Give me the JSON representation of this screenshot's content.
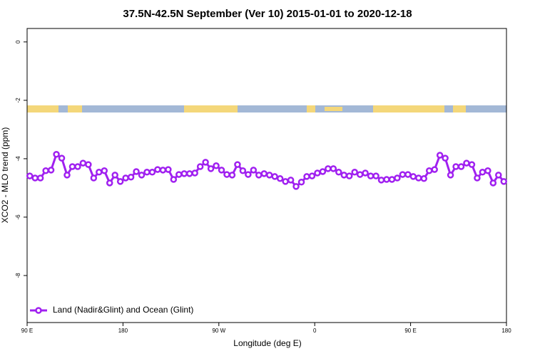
{
  "chart_data": {
    "type": "line",
    "title": "37.5N-42.5N September (Ver 10)   2015-01-01 to 2020-12-18",
    "xlabel": "Longitude (deg E)",
    "ylabel": "XCO2 - MLO trend (ppm)",
    "xlim": [
      90,
      540
    ],
    "ylim": [
      -9.61,
      0.46
    ],
    "xticks": [
      {
        "value": 90,
        "label": "90 E"
      },
      180,
      {
        "value": 270,
        "label": "90 W"
      },
      {
        "value": 360,
        "label": "0"
      },
      {
        "value": 450,
        "label": "90 E"
      },
      {
        "value": 540,
        "label": "180"
      }
    ],
    "yticks": [
      0,
      -2,
      -4,
      -6,
      -8
    ],
    "legend": "bottom-left",
    "x": [
      92.5,
      97.5,
      102.5,
      107.5,
      112.5,
      117.5,
      122.5,
      127.5,
      132.5,
      137.5,
      142.5,
      147.5,
      152.5,
      157.5,
      162.5,
      167.5,
      172.5,
      177.5,
      182.5,
      187.5,
      192.5,
      197.5,
      202.5,
      207.5,
      212.5,
      217.5,
      222.5,
      227.5,
      232.5,
      237.5,
      242.5,
      247.5,
      252.5,
      257.5,
      262.5,
      267.5,
      272.5,
      277.5,
      282.5,
      287.5,
      292.5,
      297.5,
      302.5,
      307.5,
      312.5,
      317.5,
      322.5,
      327.5,
      332.5,
      337.5,
      342.5,
      347.5,
      352.5,
      357.5,
      362.5,
      367.5,
      372.5,
      377.5,
      382.5,
      387.5,
      392.5,
      397.5,
      402.5,
      407.5,
      412.5,
      417.5,
      422.5,
      427.5,
      432.5,
      437.5,
      442.5,
      447.5,
      452.5,
      457.5,
      462.5,
      467.5,
      472.5,
      477.5,
      482.5,
      487.5,
      492.5,
      497.5,
      502.5,
      507.5,
      512.5,
      517.5,
      522.5,
      527.5,
      532.5,
      537.5
    ],
    "series": [
      {
        "name": "Land (Nadir&Glint) and Ocean (Glint)",
        "color": "#a020f0",
        "values": [
          -4.59,
          -4.66,
          -4.66,
          -4.41,
          -4.39,
          -3.85,
          -3.98,
          -4.56,
          -4.27,
          -4.27,
          -4.15,
          -4.2,
          -4.66,
          -4.46,
          -4.41,
          -4.83,
          -4.56,
          -4.78,
          -4.66,
          -4.63,
          -4.44,
          -4.56,
          -4.46,
          -4.46,
          -4.37,
          -4.39,
          -4.37,
          -4.71,
          -4.54,
          -4.51,
          -4.51,
          -4.49,
          -4.27,
          -4.12,
          -4.34,
          -4.24,
          -4.39,
          -4.54,
          -4.56,
          -4.2,
          -4.41,
          -4.54,
          -4.39,
          -4.56,
          -4.51,
          -4.56,
          -4.61,
          -4.68,
          -4.78,
          -4.73,
          -4.95,
          -4.8,
          -4.61,
          -4.59,
          -4.49,
          -4.44,
          -4.34,
          -4.34,
          -4.46,
          -4.56,
          -4.59,
          -4.46,
          -4.54,
          -4.49,
          -4.59,
          -4.59,
          -4.73,
          -4.71,
          -4.71,
          -4.66,
          -4.54,
          -4.54,
          -4.61,
          -4.66,
          -4.68,
          -4.41,
          -4.37,
          -3.88,
          -3.98,
          -4.56,
          -4.27,
          -4.27,
          -4.15,
          -4.2,
          -4.66,
          -4.46,
          -4.41,
          -4.83,
          -4.56,
          -4.78
        ]
      }
    ]
  }
}
